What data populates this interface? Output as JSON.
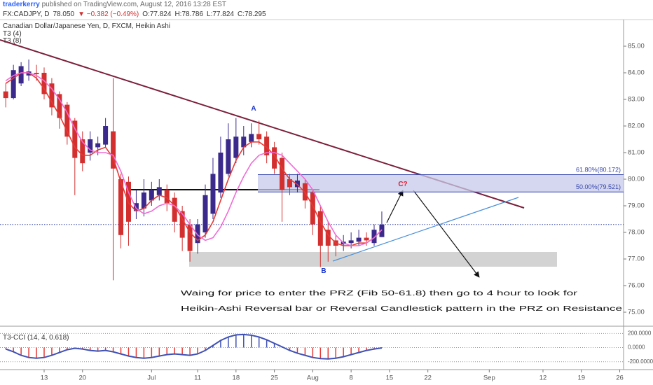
{
  "header": {
    "author": "traderkerry",
    "published": " published on TradingView.com, August 12, 2016 13:28 EST",
    "symbol": "FX:CADJPY, D",
    "last": "78.050",
    "change": "▼ −0.382 (−0.49%)",
    "ohlc_labels": [
      "O:",
      "H:",
      "L:",
      "C:"
    ]
  },
  "chart_data": [
    {
      "type": "candlestick",
      "title": "Canadian Dollar/Japanese Yen, D, FXCM, Heikin Ashi",
      "x": [
        -5,
        -4,
        -3,
        -2,
        -1,
        0,
        1,
        2,
        3,
        4,
        5,
        6,
        7,
        8,
        9,
        10,
        11,
        12,
        13,
        14,
        15,
        16,
        17,
        18,
        19,
        20,
        21,
        22,
        23,
        24,
        25,
        26,
        27,
        28,
        29,
        30,
        31,
        32,
        33,
        34,
        35,
        36,
        37,
        38,
        39,
        40,
        41,
        42,
        43,
        44
      ],
      "open": [
        83.3,
        83.05,
        83.6,
        83.9,
        84.0,
        84.0,
        83.6,
        83.2,
        82.8,
        82.2,
        81.5,
        81.0,
        81.2,
        81.3,
        81.8,
        80.0,
        79.9,
        78.8,
        78.9,
        79.2,
        79.4,
        79.6,
        79.3,
        78.8,
        78.3,
        77.6,
        78.0,
        78.7,
        79.5,
        80.2,
        80.8,
        81.2,
        81.4,
        81.7,
        81.6,
        81.2,
        80.8,
        80.0,
        79.7,
        79.85,
        79.5,
        78.8,
        78.1,
        77.7,
        77.55,
        77.6,
        77.65,
        77.8,
        77.6,
        77.824
      ],
      "high": [
        83.6,
        84.3,
        84.4,
        84.5,
        84.3,
        84.2,
        83.8,
        83.3,
        82.9,
        82.3,
        81.8,
        81.8,
        81.6,
        82.3,
        83.8,
        80.2,
        80.1,
        79.6,
        80.0,
        79.9,
        80.0,
        79.8,
        79.5,
        79.0,
        78.5,
        78.5,
        79.8,
        80.8,
        81.6,
        82.1,
        82.3,
        82.0,
        82.1,
        82.2,
        81.8,
        81.4,
        81.0,
        80.2,
        80.2,
        80.0,
        79.6,
        79.0,
        78.4,
        77.9,
        77.9,
        78.0,
        78.1,
        78.0,
        78.3,
        78.786
      ],
      "low": [
        82.7,
        83.0,
        83.5,
        83.7,
        83.7,
        83.0,
        82.4,
        81.9,
        81.3,
        79.4,
        80.3,
        80.7,
        80.9,
        81.2,
        76.2,
        77.4,
        77.5,
        78.5,
        78.6,
        79.0,
        79.2,
        78.8,
        78.0,
        77.3,
        76.9,
        77.2,
        77.8,
        78.5,
        79.3,
        80.1,
        80.6,
        80.9,
        81.2,
        81.3,
        80.6,
        80.2,
        78.4,
        79.4,
        79.5,
        78.9,
        77.9,
        76.7,
        76.9,
        77.1,
        77.3,
        77.4,
        77.5,
        77.5,
        77.5,
        77.824
      ],
      "close": [
        83.05,
        84.1,
        84.25,
        84.05,
        83.95,
        83.2,
        82.7,
        82.3,
        81.6,
        80.8,
        80.6,
        81.5,
        81.35,
        82.0,
        80.4,
        77.9,
        78.4,
        79.1,
        79.5,
        79.6,
        79.7,
        79.1,
        78.4,
        77.8,
        77.3,
        78.3,
        79.4,
        80.2,
        81.0,
        81.5,
        81.6,
        81.6,
        81.7,
        81.5,
        80.9,
        80.4,
        79.6,
        79.7,
        79.95,
        79.2,
        78.3,
        77.5,
        77.5,
        77.5,
        77.65,
        77.7,
        77.8,
        77.7,
        78.1,
        78.295
      ],
      "up_color": "#3b2a8c",
      "down_color": "#d32f2f",
      "overlays": [
        {
          "name": "T3 (4)",
          "color": "#e53935",
          "values": [
            83.6,
            83.8,
            84.0,
            84.0,
            83.8,
            83.4,
            82.9,
            82.4,
            81.8,
            81.2,
            80.9,
            80.9,
            81.1,
            81.2,
            80.8,
            79.9,
            79.1,
            78.8,
            78.9,
            79.2,
            79.4,
            79.3,
            79.0,
            78.5,
            78.0,
            77.7,
            77.9,
            78.4,
            79.2,
            80.0,
            80.7,
            81.2,
            81.4,
            81.4,
            81.2,
            80.9,
            80.4,
            80.0,
            79.8,
            79.5,
            79.0,
            78.4,
            77.9,
            77.6,
            77.5,
            77.5,
            77.6,
            77.6,
            77.8,
            78.1
          ]
        },
        {
          "name": "T3 (8)",
          "color": "#f06bd6",
          "values": [
            83.7,
            83.9,
            84.0,
            84.0,
            83.9,
            83.7,
            83.4,
            83.0,
            82.5,
            81.9,
            81.4,
            81.1,
            81.0,
            81.0,
            80.9,
            80.3,
            79.5,
            78.9,
            78.7,
            78.8,
            79.0,
            79.1,
            79.0,
            78.7,
            78.3,
            77.9,
            77.7,
            77.8,
            78.2,
            78.8,
            79.5,
            80.1,
            80.6,
            80.9,
            81.0,
            81.0,
            80.9,
            80.6,
            80.3,
            80.0,
            79.6,
            79.0,
            78.4,
            77.9,
            77.6,
            77.5,
            77.5,
            77.6,
            77.8,
            78.1
          ]
        }
      ],
      "xlim": [
        -5.75,
        75.5
      ],
      "xticks": [
        {
          "value": 0,
          "label": "13"
        },
        {
          "value": 5,
          "label": "20"
        },
        {
          "value": 14,
          "label": "Jul"
        },
        {
          "value": 20,
          "label": "11"
        },
        {
          "value": 25,
          "label": "18"
        },
        {
          "value": 30,
          "label": "25"
        },
        {
          "value": 35,
          "label": "Aug"
        },
        {
          "value": 40,
          "label": "8"
        },
        {
          "value": 45,
          "label": "15"
        },
        {
          "value": 50,
          "label": "22"
        },
        {
          "value": 58,
          "label": "Sep"
        },
        {
          "value": 65,
          "label": "12"
        },
        {
          "value": 70,
          "label": "19"
        },
        {
          "value": 75,
          "label": "26"
        }
      ],
      "ylim": [
        74.5,
        86
      ],
      "yticks": [
        {
          "value": 75,
          "label": "75.00"
        },
        {
          "value": 76,
          "label": "76.00"
        },
        {
          "value": 77,
          "label": "77.00"
        },
        {
          "value": 78,
          "label": "78.00"
        },
        {
          "value": 79,
          "label": "79.00"
        },
        {
          "value": 80,
          "label": "80.00"
        },
        {
          "value": 81,
          "label": "81.00"
        },
        {
          "value": 82,
          "label": "82.00"
        },
        {
          "value": 83,
          "label": "83.00"
        },
        {
          "value": 84,
          "label": "84.00"
        },
        {
          "value": 85,
          "label": "85.00"
        }
      ],
      "fib_levels": [
        {
          "value": 80.172,
          "label": "61.80%(80.172)"
        },
        {
          "value": 79.521,
          "label": "50.00%(79.521)"
        }
      ],
      "annotations": [
        "A",
        "B",
        "C?",
        "Waing for price to enter the PRZ (Fib 50-61.8) then go to 4 hour to look for",
        "Heikin-Ashi Reversal bar or Reversal Candlestick pattern in the PRZ on Resistance"
      ]
    },
    {
      "type": "line",
      "series": [
        {
          "name": "T3-CCI (14, 4, 0.618)",
          "color": "#3f51b5",
          "values": [
            -20,
            -60,
            -110,
            -140,
            -150,
            -140,
            -110,
            -70,
            -30,
            -10,
            -20,
            -40,
            -50,
            -40,
            -60,
            -90,
            -120,
            -140,
            -150,
            -140,
            -120,
            -100,
            -90,
            -100,
            -110,
            -90,
            -40,
            30,
            100,
            150,
            180,
            185,
            175,
            150,
            110,
            60,
            10,
            -40,
            -80,
            -110,
            -140,
            -155,
            -160,
            -150,
            -130,
            -100,
            -70,
            -40,
            -20,
            -5
          ]
        }
      ],
      "pos_color": "#3f51b5",
      "neg_color": "#e53935",
      "ylim": [
        -312,
        273
      ],
      "yticks": [
        {
          "value": 200,
          "label": "200.0000"
        },
        {
          "value": 0,
          "label": "0.0000"
        },
        {
          "value": -200,
          "label": "-200.0000"
        }
      ]
    }
  ]
}
